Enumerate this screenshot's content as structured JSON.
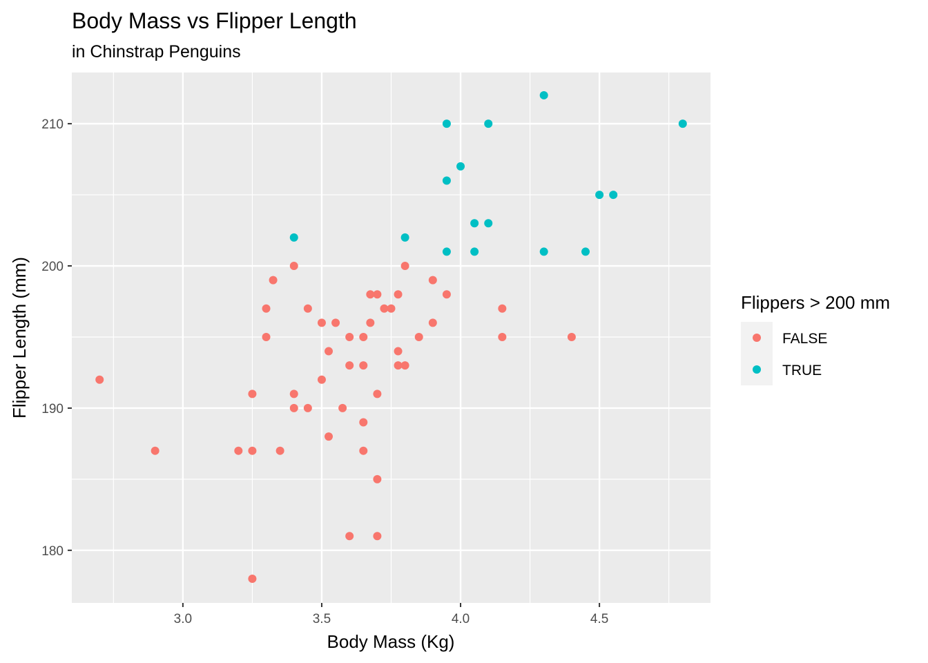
{
  "chart_data": {
    "type": "scatter",
    "title": "Body Mass vs Flipper Length",
    "subtitle": "in Chinstrap Penguins",
    "xlabel": "Body Mass (Kg)",
    "ylabel": "Flipper Length (mm)",
    "xlim": [
      2.6,
      4.9
    ],
    "ylim": [
      176.3,
      213.6
    ],
    "x_ticks": [
      3.0,
      3.5,
      4.0,
      4.5
    ],
    "x_tick_labels": [
      "3.0",
      "3.5",
      "4.0",
      "4.5"
    ],
    "y_ticks": [
      180,
      190,
      200,
      210
    ],
    "y_tick_labels": [
      "180",
      "190",
      "200",
      "210"
    ],
    "grid": true,
    "legend": {
      "title": "Flippers > 200 mm",
      "placement": "right",
      "entries": [
        {
          "label": "FALSE",
          "color": "#F8766D"
        },
        {
          "label": "TRUE",
          "color": "#00BFC4"
        }
      ]
    },
    "series": [
      {
        "name": "FALSE",
        "color": "#F8766D",
        "points": [
          [
            2.7,
            192
          ],
          [
            2.9,
            187
          ],
          [
            3.2,
            187
          ],
          [
            3.25,
            191
          ],
          [
            3.25,
            187
          ],
          [
            3.25,
            178
          ],
          [
            3.3,
            197
          ],
          [
            3.3,
            195
          ],
          [
            3.325,
            199
          ],
          [
            3.35,
            187
          ],
          [
            3.4,
            200
          ],
          [
            3.4,
            191
          ],
          [
            3.4,
            190
          ],
          [
            3.45,
            197
          ],
          [
            3.45,
            190
          ],
          [
            3.5,
            196
          ],
          [
            3.5,
            192
          ],
          [
            3.525,
            194
          ],
          [
            3.525,
            188
          ],
          [
            3.55,
            196
          ],
          [
            3.575,
            190
          ],
          [
            3.6,
            195
          ],
          [
            3.6,
            193
          ],
          [
            3.6,
            181
          ],
          [
            3.65,
            195
          ],
          [
            3.65,
            193
          ],
          [
            3.65,
            189
          ],
          [
            3.65,
            187
          ],
          [
            3.675,
            198
          ],
          [
            3.675,
            196
          ],
          [
            3.7,
            198
          ],
          [
            3.7,
            191
          ],
          [
            3.7,
            185
          ],
          [
            3.7,
            181
          ],
          [
            3.725,
            197
          ],
          [
            3.75,
            197
          ],
          [
            3.775,
            198
          ],
          [
            3.775,
            194
          ],
          [
            3.775,
            193
          ],
          [
            3.8,
            200
          ],
          [
            3.8,
            193
          ],
          [
            3.85,
            195
          ],
          [
            3.9,
            199
          ],
          [
            3.9,
            196
          ],
          [
            3.95,
            198
          ],
          [
            4.15,
            197
          ],
          [
            4.15,
            195
          ],
          [
            4.4,
            195
          ]
        ]
      },
      {
        "name": "TRUE",
        "color": "#00BFC4",
        "points": [
          [
            3.4,
            202
          ],
          [
            3.8,
            202
          ],
          [
            3.95,
            210
          ],
          [
            3.95,
            206
          ],
          [
            3.95,
            201
          ],
          [
            4.0,
            207
          ],
          [
            4.05,
            203
          ],
          [
            4.05,
            201
          ],
          [
            4.1,
            210
          ],
          [
            4.1,
            203
          ],
          [
            4.3,
            212
          ],
          [
            4.3,
            201
          ],
          [
            4.45,
            201
          ],
          [
            4.5,
            205
          ],
          [
            4.55,
            205
          ],
          [
            4.8,
            210
          ]
        ]
      }
    ]
  }
}
